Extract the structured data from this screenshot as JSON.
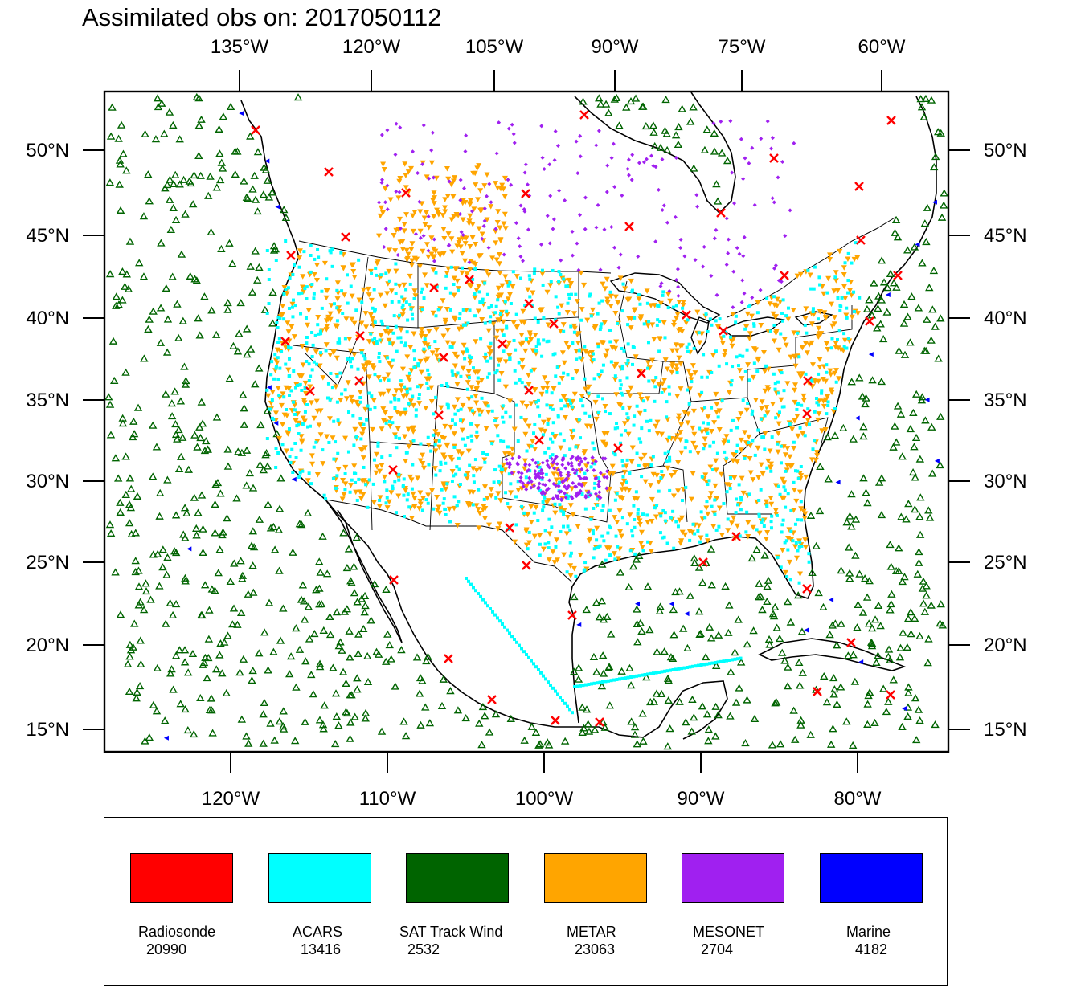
{
  "title": "Assimilated obs on: 2017050112",
  "top_lon_labels": [
    "135°W",
    "120°W",
    "105°W",
    "90°W",
    "75°W",
    "60°W"
  ],
  "bottom_lon_labels": [
    "120°W",
    "110°W",
    "100°W",
    "90°W",
    "80°W"
  ],
  "lat_labels": [
    "50°N",
    "45°N",
    "40°N",
    "35°N",
    "30°N",
    "25°N",
    "20°N",
    "15°N"
  ],
  "map_data": {
    "projection": "Lambert conformal (curved graticule)",
    "lat_range": [
      14,
      53
    ],
    "lon_range": [
      -128,
      -73
    ],
    "observations": [
      {
        "type": "Radiosonde",
        "color": "#ff0000",
        "marker": "x-icon",
        "density": "sparse, upper-air sites"
      },
      {
        "type": "ACARS",
        "color": "#00ffff",
        "marker": "square-dot-icon",
        "density": "dense along flight routes"
      },
      {
        "type": "SAT Track Wind",
        "color": "#006400",
        "marker": "triangle-outline-icon",
        "density": "oceans"
      },
      {
        "type": "METAR",
        "color": "#ffa500",
        "marker": "triangle-down-icon",
        "density": "dense over land"
      },
      {
        "type": "MESONET",
        "color": "#a020f0",
        "marker": "diamond-icon",
        "density": "northern plains, Canada, Oklahoma"
      },
      {
        "type": "Marine",
        "color": "#0000ff",
        "marker": "triangle-left-icon",
        "density": "coastal waters"
      }
    ]
  },
  "legend": [
    {
      "name": "Radiosonde",
      "count": "20990",
      "color": "#ff0000"
    },
    {
      "name": "ACARS",
      "count": "13416",
      "color": "#00ffff"
    },
    {
      "name": "SAT Track Wind",
      "count": "2532",
      "color": "#006400"
    },
    {
      "name": "METAR",
      "count": "23063",
      "color": "#ffa500"
    },
    {
      "name": "MESONET",
      "count": "2704",
      "color": "#a020f0"
    },
    {
      "name": "Marine",
      "count": "4182",
      "color": "#0000ff"
    }
  ]
}
